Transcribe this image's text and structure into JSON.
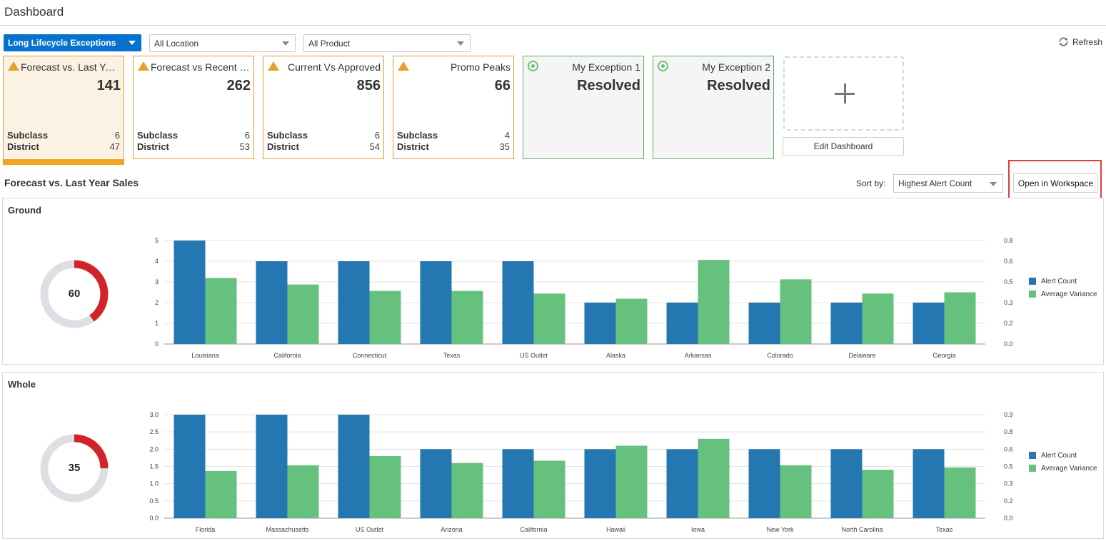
{
  "header": {
    "title": "Dashboard"
  },
  "filters": {
    "exception_group": "Long Lifecycle Exceptions",
    "location": "All Location",
    "product": "All Product",
    "refresh_label": "Refresh"
  },
  "tiles": [
    {
      "name": "Forecast vs. Last Year Sales",
      "name_display": "Forecast vs. Last Year...",
      "value": "141",
      "status": "alert",
      "selected": true,
      "subclass_label": "Subclass",
      "subclass": "6",
      "district_label": "District",
      "district": "47"
    },
    {
      "name": "Forecast vs Recent Sales",
      "name_display": "Forecast vs Recent S...",
      "value": "262",
      "status": "alert",
      "selected": false,
      "subclass_label": "Subclass",
      "subclass": "6",
      "district_label": "District",
      "district": "53"
    },
    {
      "name": "Current Vs Approved",
      "name_display": "Current Vs Approved",
      "value": "856",
      "status": "alert",
      "selected": false,
      "subclass_label": "Subclass",
      "subclass": "6",
      "district_label": "District",
      "district": "54"
    },
    {
      "name": "Promo Peaks",
      "name_display": "Promo Peaks",
      "value": "66",
      "status": "alert",
      "selected": false,
      "subclass_label": "Subclass",
      "subclass": "4",
      "district_label": "District",
      "district": "35"
    },
    {
      "name": "My Exception 1",
      "name_display": "My Exception 1",
      "value": "Resolved",
      "status": "resolved",
      "selected": false
    },
    {
      "name": "My Exception 2",
      "name_display": "My Exception 2",
      "value": "Resolved",
      "status": "resolved",
      "selected": false
    }
  ],
  "edit_dashboard_label": "Edit Dashboard",
  "detail": {
    "title": "Forecast vs. Last Year Sales",
    "sort_label": "Sort by:",
    "sort_value": "Highest Alert Count",
    "open_workspace_label": "Open in Workspace"
  },
  "colors": {
    "alert_count": "#2477b1",
    "average_variance": "#66c17f",
    "donut_alert": "#d0232a",
    "donut_track": "#dcdfe3",
    "primary": "#0572ce"
  },
  "chart_data": [
    {
      "type": "bar",
      "title": "Ground",
      "donut_value": "60",
      "donut_fraction": 0.4,
      "categories": [
        "Louisiana",
        "California",
        "Connecticut",
        "Texas",
        "US Outlet",
        "Alaska",
        "Arkansas",
        "Colorado",
        "Delaware",
        "Georgia"
      ],
      "series": [
        {
          "name": "Alert Count",
          "axis": "left",
          "values": [
            5,
            4,
            4,
            4,
            4,
            2,
            2,
            2,
            2,
            2
          ]
        },
        {
          "name": "Average Variance",
          "axis": "right",
          "values": [
            0.51,
            0.46,
            0.41,
            0.41,
            0.39,
            0.35,
            0.65,
            0.5,
            0.39,
            0.4
          ]
        }
      ],
      "y_left": {
        "ylim": [
          0,
          5
        ],
        "ticks": [
          "0",
          "1",
          "2",
          "3",
          "4",
          "5"
        ]
      },
      "y_right": {
        "ylim": [
          0,
          0.8
        ],
        "ticks": [
          "0.0",
          "0.2",
          "0.3",
          "0.5",
          "0.6",
          "0.8"
        ]
      },
      "legend": "right",
      "grid": true
    },
    {
      "type": "bar",
      "title": "Whole",
      "donut_value": "35",
      "donut_fraction": 0.25,
      "categories": [
        "Florida",
        "Massachusetts",
        "US Outlet",
        "Arizona",
        "California",
        "Hawaii",
        "Iowa",
        "New York",
        "North Carolina",
        "Texas"
      ],
      "series": [
        {
          "name": "Alert Count",
          "axis": "left",
          "values": [
            3,
            3,
            3,
            2,
            2,
            2,
            2,
            2,
            2,
            2
          ]
        },
        {
          "name": "Average Variance",
          "axis": "right",
          "values": [
            0.41,
            0.46,
            0.54,
            0.48,
            0.5,
            0.63,
            0.69,
            0.46,
            0.42,
            0.44
          ]
        }
      ],
      "y_left": {
        "ylim": [
          0,
          3
        ],
        "ticks": [
          "0.0",
          "0.5",
          "1.0",
          "1.5",
          "2.0",
          "2.5",
          "3.0"
        ]
      },
      "y_right": {
        "ylim": [
          0,
          0.9
        ],
        "ticks": [
          "0.0",
          "0.2",
          "0.3",
          "0.5",
          "0.6",
          "0.8",
          "0.9"
        ]
      },
      "legend": "right",
      "grid": true
    }
  ]
}
